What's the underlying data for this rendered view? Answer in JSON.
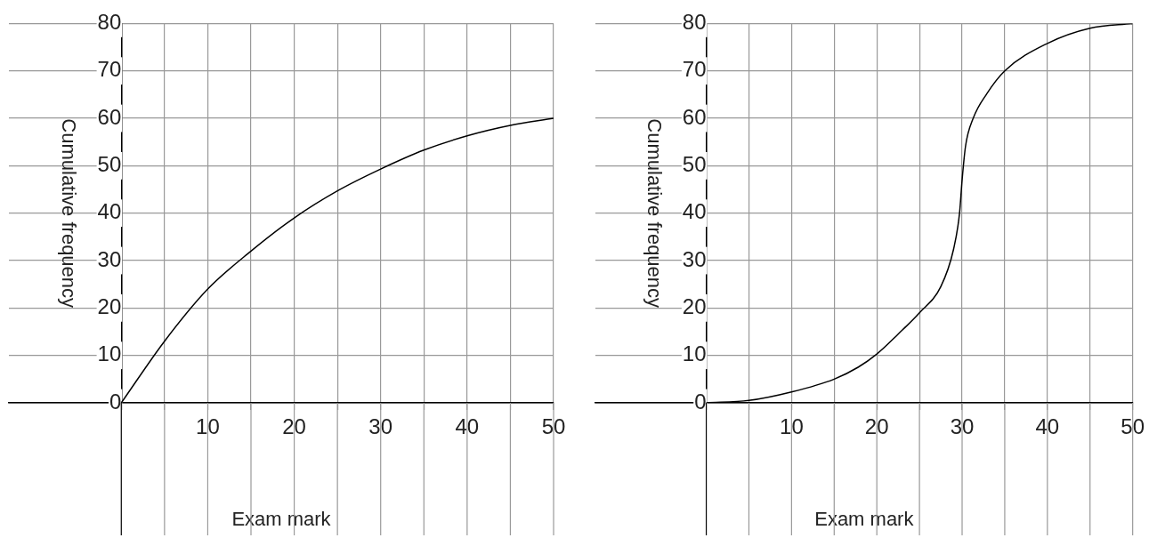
{
  "chart_data": [
    {
      "type": "line",
      "xlabel": "Exam mark",
      "ylabel": "Cumulative frequency",
      "xlim": [
        -13,
        50
      ],
      "ylim": [
        0,
        80
      ],
      "xticks": [
        {
          "value": 0,
          "label": null
        },
        {
          "value": 5,
          "label": null
        },
        10,
        {
          "value": 15,
          "label": null
        },
        20,
        {
          "value": 25,
          "label": null
        },
        30,
        {
          "value": 35,
          "label": null
        },
        40,
        {
          "value": 45,
          "label": null
        },
        50
      ],
      "yticks": [
        0,
        10,
        20,
        30,
        40,
        50,
        60,
        70,
        80
      ],
      "grid": true,
      "series": [
        {
          "color": "#000000",
          "x": [
            0,
            5,
            10,
            15,
            20,
            25,
            30,
            35,
            40,
            45,
            50
          ],
          "values": [
            0,
            13,
            24,
            32,
            39,
            44.7,
            49.3,
            53.3,
            56.3,
            58.5,
            60
          ]
        }
      ]
    },
    {
      "type": "line",
      "xlabel": "Exam mark",
      "ylabel": "Cumulative frequency",
      "xlim": [
        -13,
        50
      ],
      "ylim": [
        0,
        80
      ],
      "xticks": [
        {
          "value": 0,
          "label": null
        },
        {
          "value": 5,
          "label": null
        },
        10,
        {
          "value": 15,
          "label": null
        },
        20,
        {
          "value": 25,
          "label": null
        },
        30,
        {
          "value": 35,
          "label": null
        },
        40,
        {
          "value": 45,
          "label": null
        },
        50
      ],
      "yticks": [
        0,
        10,
        20,
        30,
        40,
        50,
        60,
        70,
        80
      ],
      "grid": true,
      "series": [
        {
          "color": "#000000",
          "x": [
            0,
            5,
            10,
            15,
            17.8,
            20,
            22.5,
            25,
            27.5,
            29,
            29.7,
            30,
            30.4,
            31.3,
            32.9,
            35,
            40,
            45,
            50
          ],
          "values": [
            0,
            0.5,
            2.3,
            5,
            7.5,
            10.3,
            14.5,
            19,
            24.5,
            32.4,
            40,
            47,
            54.1,
            60,
            65.2,
            70,
            75.8,
            79,
            80
          ]
        }
      ]
    }
  ]
}
